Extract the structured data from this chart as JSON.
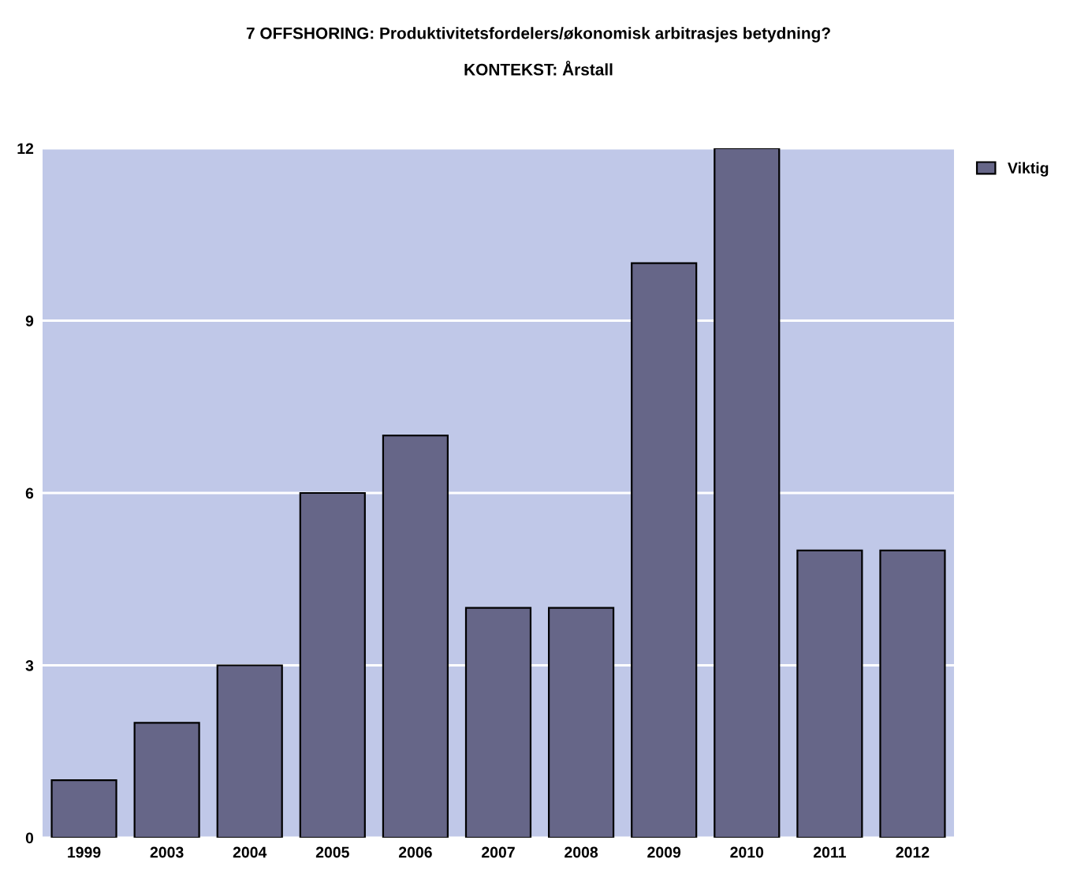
{
  "chart_data": {
    "type": "bar",
    "title": "7 OFFSHORING: Produktivitetsfordelers/økonomisk arbitrasjes betydning?",
    "subtitle": "KONTEKST: Årstall",
    "categories": [
      "1999",
      "2003",
      "2004",
      "2005",
      "2006",
      "2007",
      "2008",
      "2009",
      "2010",
      "2011",
      "2012"
    ],
    "series": [
      {
        "name": "Viktig",
        "color": "#666688",
        "values": [
          1,
          2,
          3,
          6,
          7,
          4,
          4,
          10,
          12,
          5,
          5
        ]
      }
    ],
    "ylim": [
      0,
      12
    ],
    "yticks": [
      0,
      3,
      6,
      9,
      12
    ],
    "grid": "y",
    "legend": "top right"
  }
}
